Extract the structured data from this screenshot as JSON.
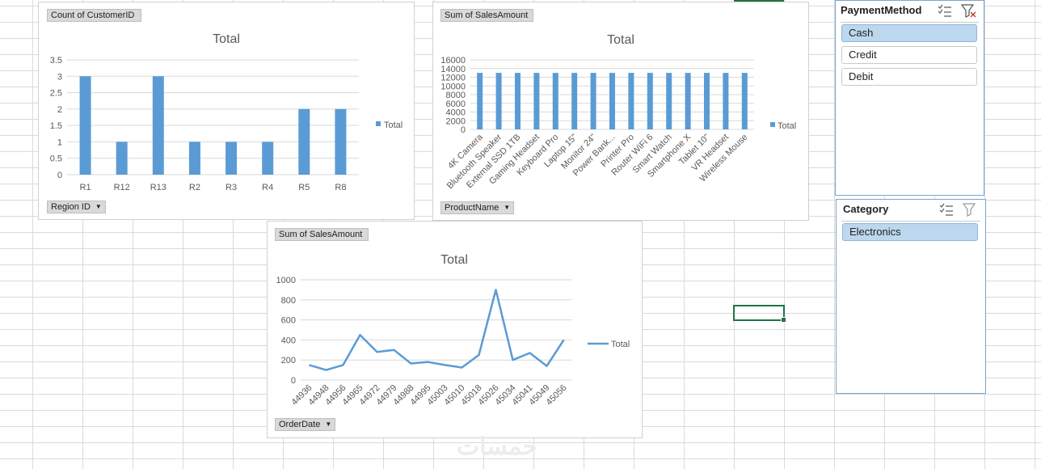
{
  "charts": {
    "region": {
      "field_label": "Count of CustomerID",
      "axis_button": "Region ID",
      "title": "Total",
      "legend": "Total"
    },
    "product": {
      "field_label": "Sum of SalesAmount",
      "axis_button": "ProductName",
      "title": "Total",
      "legend": "Total"
    },
    "orderdate": {
      "field_label": "Sum of SalesAmount",
      "axis_button": "OrderDate",
      "title": "Total",
      "legend": "Total"
    }
  },
  "slicers": {
    "payment": {
      "title": "PaymentMethod",
      "items": [
        "Cash",
        "Credit",
        "Debit"
      ],
      "selected": "Cash"
    },
    "category": {
      "title": "Category",
      "items": [
        "Electronics"
      ],
      "selected": "Electronics"
    }
  },
  "watermark": "خمسات",
  "colors": {
    "series": "#5b9bd5",
    "accent": "#217346",
    "slicer_selected": "#bdd7ee"
  },
  "chart_data": [
    {
      "type": "bar",
      "title": "Total",
      "xlabel": "Region ID",
      "ylabel": "",
      "categories": [
        "R1",
        "R12",
        "R13",
        "R2",
        "R3",
        "R4",
        "R5",
        "R8"
      ],
      "series": [
        {
          "name": "Total",
          "values": [
            3,
            1,
            3,
            1,
            1,
            1,
            2,
            2
          ]
        }
      ],
      "ylim": [
        0,
        3.5
      ],
      "yticks": [
        "0",
        "0.5",
        "1",
        "1.5",
        "2",
        "2.5",
        "3",
        "3.5"
      ],
      "legend": "right"
    },
    {
      "type": "bar",
      "title": "Total",
      "xlabel": "ProductName",
      "ylabel": "",
      "categories": [
        "4K Camera",
        "Bluetooth Speaker",
        "External SSD 1TB",
        "Gaming Headset",
        "Keyboard Pro",
        "Laptop 15\"",
        "Monitor 24\"",
        "Power Bank...",
        "Printer Pro",
        "Router WiFi 6",
        "Smart Watch",
        "Smartphone X",
        "Tablet 10\"",
        "VR Headset",
        "Wireless Mouse"
      ],
      "series": [
        {
          "name": "Total",
          "values": [
            13000,
            13000,
            13000,
            13000,
            13000,
            13000,
            13000,
            13000,
            13000,
            13000,
            13000,
            13000,
            13000,
            13000,
            13000
          ]
        }
      ],
      "ylim": [
        0,
        16000
      ],
      "yticks": [
        "0",
        "2000",
        "4000",
        "6000",
        "8000",
        "10000",
        "12000",
        "14000",
        "16000"
      ],
      "legend": "right"
    },
    {
      "type": "line",
      "title": "Total",
      "xlabel": "OrderDate",
      "ylabel": "",
      "categories": [
        "44936",
        "44948",
        "44956",
        "44965",
        "44972",
        "44979",
        "44988",
        "44995",
        "45003",
        "45010",
        "45018",
        "45026",
        "45034",
        "45041",
        "45049",
        "45056"
      ],
      "series": [
        {
          "name": "Total",
          "values": [
            150,
            100,
            150,
            450,
            280,
            300,
            165,
            180,
            150,
            125,
            250,
            900,
            200,
            270,
            140,
            400
          ]
        }
      ],
      "ylim": [
        0,
        1000
      ],
      "yticks": [
        "0",
        "200",
        "400",
        "600",
        "800",
        "1000"
      ],
      "legend": "right"
    }
  ]
}
